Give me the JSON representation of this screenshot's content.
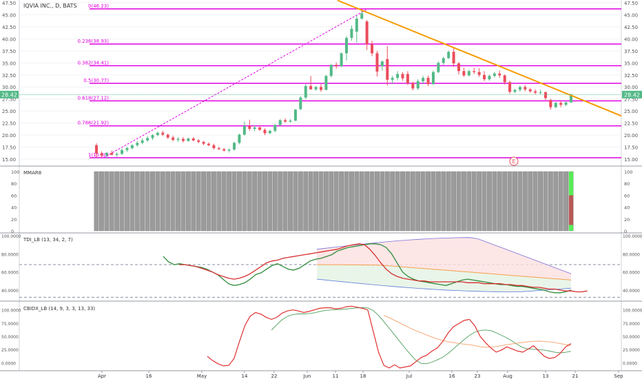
{
  "header": {
    "symbol_title": "IQVIA INC., D, BATS"
  },
  "price_panel": {
    "last_price_label": "28.42",
    "earnings_marker": "E",
    "y_ticks": [
      "15.00",
      "17.50",
      "20.00",
      "22.50",
      "25.00",
      "27.50",
      "30.00",
      "32.50",
      "35.00",
      "37.50",
      "40.00",
      "42.50",
      "45.00",
      "47.50"
    ]
  },
  "fib_levels": [
    {
      "label": "0(46.23)",
      "value": 46.23
    },
    {
      "label": "0.236(38.93)",
      "value": 38.93
    },
    {
      "label": "0.382(34.41)",
      "value": 34.41
    },
    {
      "label": "0.5(30.77)",
      "value": 30.77
    },
    {
      "label": "0.618(27.12)",
      "value": 27.12
    },
    {
      "label": "0.786(21.92)",
      "value": 21.92
    },
    {
      "label": "1(15.30)",
      "value": 15.3
    }
  ],
  "indicators": {
    "mmar": {
      "title": "MMAR8",
      "y_ticks": [
        "0",
        "20",
        "40",
        "60",
        "80",
        "100"
      ]
    },
    "tdi": {
      "title": "TDI_LB (13, 34, 2, 7)",
      "y_ticks": [
        "40.0000",
        "60.0000",
        "80.0000",
        "100.0000"
      ]
    },
    "cbidx": {
      "title": "CBIDX_LB (14, 9, 3, 3, 13, 33)",
      "y_ticks": [
        "0.0000",
        "25.0000",
        "50.0000",
        "75.0000",
        "100.0000"
      ]
    }
  },
  "x_axis": {
    "labels": [
      "Apr",
      "16",
      "May",
      "14",
      "22",
      "Jun",
      "11",
      "18",
      "Jul",
      "16",
      "23",
      "Aug",
      "13",
      "21",
      "Sep"
    ]
  },
  "colors": {
    "up": "#53b987",
    "down": "#eb4d5c",
    "fib": "#e100e1",
    "trendline": "#f59b00",
    "mmar_bar": "#9b9b9b",
    "mmar_green": "#55ee55",
    "mmar_red": "#b85858"
  },
  "chart_data": {
    "type": "candlestick",
    "title": "IQVIA INC., D, BATS",
    "ylim": [
      14.0,
      47.5
    ],
    "last_price": 28.42,
    "trendline": {
      "from_price": 48.0,
      "to_price": 24.0
    },
    "candles": [
      {
        "o": 17.9,
        "h": 18.3,
        "l": 15.4,
        "c": 16.2
      },
      {
        "o": 16.2,
        "h": 16.6,
        "l": 15.4,
        "c": 15.8
      },
      {
        "o": 15.8,
        "h": 16.5,
        "l": 15.3,
        "c": 16.3
      },
      {
        "o": 16.3,
        "h": 16.8,
        "l": 15.8,
        "c": 15.9
      },
      {
        "o": 15.9,
        "h": 16.4,
        "l": 15.5,
        "c": 16.1
      },
      {
        "o": 16.1,
        "h": 17.2,
        "l": 15.9,
        "c": 16.9
      },
      {
        "o": 16.9,
        "h": 17.6,
        "l": 16.5,
        "c": 17.3
      },
      {
        "o": 17.3,
        "h": 18.1,
        "l": 17.0,
        "c": 17.9
      },
      {
        "o": 17.9,
        "h": 18.8,
        "l": 17.6,
        "c": 18.4
      },
      {
        "o": 18.4,
        "h": 19.3,
        "l": 18.1,
        "c": 18.9
      },
      {
        "o": 18.9,
        "h": 19.8,
        "l": 18.6,
        "c": 19.4
      },
      {
        "o": 19.4,
        "h": 20.2,
        "l": 19.0,
        "c": 20.0
      },
      {
        "o": 20.0,
        "h": 20.7,
        "l": 19.8,
        "c": 20.5
      },
      {
        "o": 20.5,
        "h": 20.9,
        "l": 19.8,
        "c": 20.1
      },
      {
        "o": 20.1,
        "h": 20.3,
        "l": 19.2,
        "c": 19.5
      },
      {
        "o": 19.5,
        "h": 19.9,
        "l": 18.7,
        "c": 19.0
      },
      {
        "o": 19.0,
        "h": 19.6,
        "l": 18.6,
        "c": 19.2
      },
      {
        "o": 19.2,
        "h": 19.6,
        "l": 18.5,
        "c": 18.8
      },
      {
        "o": 18.8,
        "h": 19.5,
        "l": 18.6,
        "c": 19.3
      },
      {
        "o": 19.3,
        "h": 19.6,
        "l": 18.7,
        "c": 18.9
      },
      {
        "o": 18.9,
        "h": 19.2,
        "l": 18.3,
        "c": 18.6
      },
      {
        "o": 18.6,
        "h": 18.8,
        "l": 17.9,
        "c": 18.2
      },
      {
        "o": 18.2,
        "h": 18.5,
        "l": 17.7,
        "c": 17.9
      },
      {
        "o": 17.9,
        "h": 18.2,
        "l": 17.0,
        "c": 17.3
      },
      {
        "o": 17.3,
        "h": 17.6,
        "l": 16.9,
        "c": 17.1
      },
      {
        "o": 17.1,
        "h": 17.3,
        "l": 16.6,
        "c": 16.8
      },
      {
        "o": 16.8,
        "h": 17.2,
        "l": 16.4,
        "c": 17.0
      },
      {
        "o": 17.0,
        "h": 18.6,
        "l": 16.8,
        "c": 18.4
      },
      {
        "o": 18.4,
        "h": 20.3,
        "l": 18.1,
        "c": 20.1
      },
      {
        "o": 20.1,
        "h": 22.8,
        "l": 19.9,
        "c": 21.9
      },
      {
        "o": 21.9,
        "h": 23.2,
        "l": 20.9,
        "c": 21.3
      },
      {
        "o": 21.3,
        "h": 22.0,
        "l": 20.8,
        "c": 21.6
      },
      {
        "o": 21.6,
        "h": 22.0,
        "l": 20.9,
        "c": 21.1
      },
      {
        "o": 21.1,
        "h": 21.4,
        "l": 20.0,
        "c": 20.4
      },
      {
        "o": 20.4,
        "h": 21.1,
        "l": 20.2,
        "c": 20.9
      },
      {
        "o": 20.9,
        "h": 22.3,
        "l": 20.6,
        "c": 22.1
      },
      {
        "o": 22.1,
        "h": 23.3,
        "l": 21.9,
        "c": 23.1
      },
      {
        "o": 23.1,
        "h": 23.5,
        "l": 22.6,
        "c": 22.8
      },
      {
        "o": 22.8,
        "h": 23.3,
        "l": 22.6,
        "c": 23.0
      },
      {
        "o": 23.0,
        "h": 25.4,
        "l": 22.9,
        "c": 25.3
      },
      {
        "o": 25.4,
        "h": 28.1,
        "l": 25.2,
        "c": 27.8
      },
      {
        "o": 27.8,
        "h": 30.6,
        "l": 27.5,
        "c": 30.2
      },
      {
        "o": 30.2,
        "h": 32.3,
        "l": 29.8,
        "c": 29.5
      },
      {
        "o": 29.5,
        "h": 30.2,
        "l": 29.2,
        "c": 30.0
      },
      {
        "o": 30.0,
        "h": 30.6,
        "l": 29.0,
        "c": 29.4
      },
      {
        "o": 29.4,
        "h": 32.5,
        "l": 29.3,
        "c": 32.3
      },
      {
        "o": 32.3,
        "h": 34.8,
        "l": 32.0,
        "c": 34.6
      },
      {
        "o": 34.6,
        "h": 35.1,
        "l": 33.8,
        "c": 34.3
      },
      {
        "o": 34.3,
        "h": 37.2,
        "l": 34.1,
        "c": 37.0
      },
      {
        "o": 37.0,
        "h": 40.6,
        "l": 35.5,
        "c": 40.2
      },
      {
        "o": 40.2,
        "h": 42.8,
        "l": 39.6,
        "c": 42.1
      },
      {
        "o": 41.5,
        "h": 44.8,
        "l": 39.2,
        "c": 44.2
      },
      {
        "o": 44.2,
        "h": 45.8,
        "l": 44.0,
        "c": 45.3
      },
      {
        "o": 43.6,
        "h": 43.9,
        "l": 37.7,
        "c": 38.9
      },
      {
        "o": 38.9,
        "h": 39.6,
        "l": 36.4,
        "c": 37.0
      },
      {
        "o": 37.0,
        "h": 37.5,
        "l": 32.2,
        "c": 33.2
      },
      {
        "o": 34.3,
        "h": 35.5,
        "l": 33.4,
        "c": 35.3
      },
      {
        "o": 35.8,
        "h": 38.5,
        "l": 30.3,
        "c": 31.5
      },
      {
        "o": 31.5,
        "h": 32.3,
        "l": 30.6,
        "c": 31.9
      },
      {
        "o": 31.9,
        "h": 33.3,
        "l": 31.4,
        "c": 32.7
      },
      {
        "o": 32.7,
        "h": 33.1,
        "l": 31.3,
        "c": 31.8
      },
      {
        "o": 32.7,
        "h": 33.3,
        "l": 30.4,
        "c": 30.8
      },
      {
        "o": 30.8,
        "h": 31.1,
        "l": 29.3,
        "c": 29.7
      },
      {
        "o": 29.7,
        "h": 31.6,
        "l": 29.4,
        "c": 31.2
      },
      {
        "o": 31.2,
        "h": 32.3,
        "l": 30.6,
        "c": 31.9
      },
      {
        "o": 31.9,
        "h": 32.4,
        "l": 30.2,
        "c": 30.6
      },
      {
        "o": 30.6,
        "h": 33.4,
        "l": 30.4,
        "c": 33.1
      },
      {
        "o": 33.1,
        "h": 35.3,
        "l": 32.9,
        "c": 35.0
      },
      {
        "o": 35.0,
        "h": 36.3,
        "l": 34.6,
        "c": 36.0
      },
      {
        "o": 36.0,
        "h": 37.6,
        "l": 35.8,
        "c": 37.3
      },
      {
        "o": 37.3,
        "h": 38.0,
        "l": 34.2,
        "c": 34.9
      },
      {
        "o": 34.9,
        "h": 35.2,
        "l": 32.6,
        "c": 33.3
      },
      {
        "o": 33.3,
        "h": 34.0,
        "l": 32.1,
        "c": 32.4
      },
      {
        "o": 32.4,
        "h": 33.6,
        "l": 32.2,
        "c": 33.3
      },
      {
        "o": 33.3,
        "h": 34.0,
        "l": 32.7,
        "c": 33.1
      },
      {
        "o": 33.1,
        "h": 33.9,
        "l": 32.1,
        "c": 32.5
      },
      {
        "o": 32.5,
        "h": 33.3,
        "l": 31.2,
        "c": 31.6
      },
      {
        "o": 31.6,
        "h": 32.6,
        "l": 31.3,
        "c": 32.3
      },
      {
        "o": 32.3,
        "h": 33.1,
        "l": 32.0,
        "c": 32.8
      },
      {
        "o": 32.8,
        "h": 33.4,
        "l": 31.9,
        "c": 32.4
      },
      {
        "o": 32.4,
        "h": 32.6,
        "l": 30.5,
        "c": 31.0
      },
      {
        "o": 31.0,
        "h": 31.3,
        "l": 28.6,
        "c": 29.0
      },
      {
        "o": 29.0,
        "h": 29.6,
        "l": 28.7,
        "c": 29.4
      },
      {
        "o": 29.4,
        "h": 30.3,
        "l": 29.0,
        "c": 30.0
      },
      {
        "o": 30.0,
        "h": 30.4,
        "l": 29.1,
        "c": 29.5
      },
      {
        "o": 29.5,
        "h": 29.8,
        "l": 28.8,
        "c": 29.1
      },
      {
        "o": 29.1,
        "h": 29.5,
        "l": 28.5,
        "c": 28.8
      },
      {
        "o": 28.8,
        "h": 29.4,
        "l": 28.4,
        "c": 28.9
      },
      {
        "o": 28.9,
        "h": 29.1,
        "l": 27.3,
        "c": 27.7
      },
      {
        "o": 27.3,
        "h": 27.5,
        "l": 25.3,
        "c": 25.8
      },
      {
        "o": 25.8,
        "h": 26.9,
        "l": 25.6,
        "c": 26.7
      },
      {
        "o": 26.7,
        "h": 27.1,
        "l": 25.8,
        "c": 26.3
      },
      {
        "o": 26.3,
        "h": 27.0,
        "l": 26.0,
        "c": 26.8
      },
      {
        "o": 26.8,
        "h": 28.6,
        "l": 26.7,
        "c": 28.42
      }
    ],
    "mmar8": {
      "ylim": [
        0,
        100
      ]
    },
    "tdi": {
      "ylim": [
        30,
        100
      ],
      "green": [
        77,
        71,
        68,
        69,
        68,
        67,
        66,
        65,
        63,
        60,
        57,
        52,
        47,
        45,
        46,
        48,
        52,
        57,
        59,
        63,
        67,
        69,
        66,
        63,
        62,
        64,
        68,
        72,
        74,
        75,
        77,
        79,
        83,
        85,
        87,
        88,
        89,
        90,
        91,
        91,
        90,
        87,
        80,
        70,
        60,
        55,
        52,
        50,
        49,
        48,
        47,
        46,
        45,
        47,
        49,
        51,
        52,
        51,
        50,
        49,
        48,
        47,
        46,
        46,
        45,
        44,
        44,
        43,
        42,
        41,
        40,
        38,
        37,
        37,
        38,
        40
      ],
      "red": [
        68,
        68,
        67,
        66,
        64,
        62,
        60,
        57,
        55,
        53,
        52,
        53,
        55,
        58,
        62,
        66,
        70,
        72,
        73,
        75,
        76,
        77,
        78,
        79,
        80,
        81,
        82,
        83,
        84,
        85,
        87,
        89,
        90,
        91,
        90,
        85,
        78,
        70,
        63,
        58,
        55,
        53,
        52,
        51,
        50,
        50,
        49,
        49,
        49,
        49,
        49,
        49,
        49,
        48,
        48,
        48,
        47,
        47,
        47,
        47,
        46,
        46,
        45,
        45,
        44,
        43,
        43,
        42,
        41,
        41,
        40,
        39,
        39,
        38,
        38,
        39
      ]
    },
    "cbidx": {
      "ylim": [
        -10,
        110
      ],
      "red": [
        12,
        4,
        -2,
        -6,
        -5,
        8,
        40,
        70,
        88,
        95,
        92,
        86,
        82,
        86,
        94,
        98,
        100,
        98,
        95,
        97,
        100,
        103,
        104,
        104,
        102,
        103,
        106,
        107,
        105,
        103,
        100,
        60,
        20,
        -5,
        -10,
        -4,
        -10,
        -8,
        -6,
        2,
        10,
        14,
        22,
        28,
        40,
        56,
        68,
        74,
        80,
        82,
        70,
        50,
        38,
        28,
        20,
        24,
        30,
        26,
        22,
        20,
        26,
        32,
        22,
        12,
        8,
        10,
        18,
        30,
        36
      ]
    }
  }
}
